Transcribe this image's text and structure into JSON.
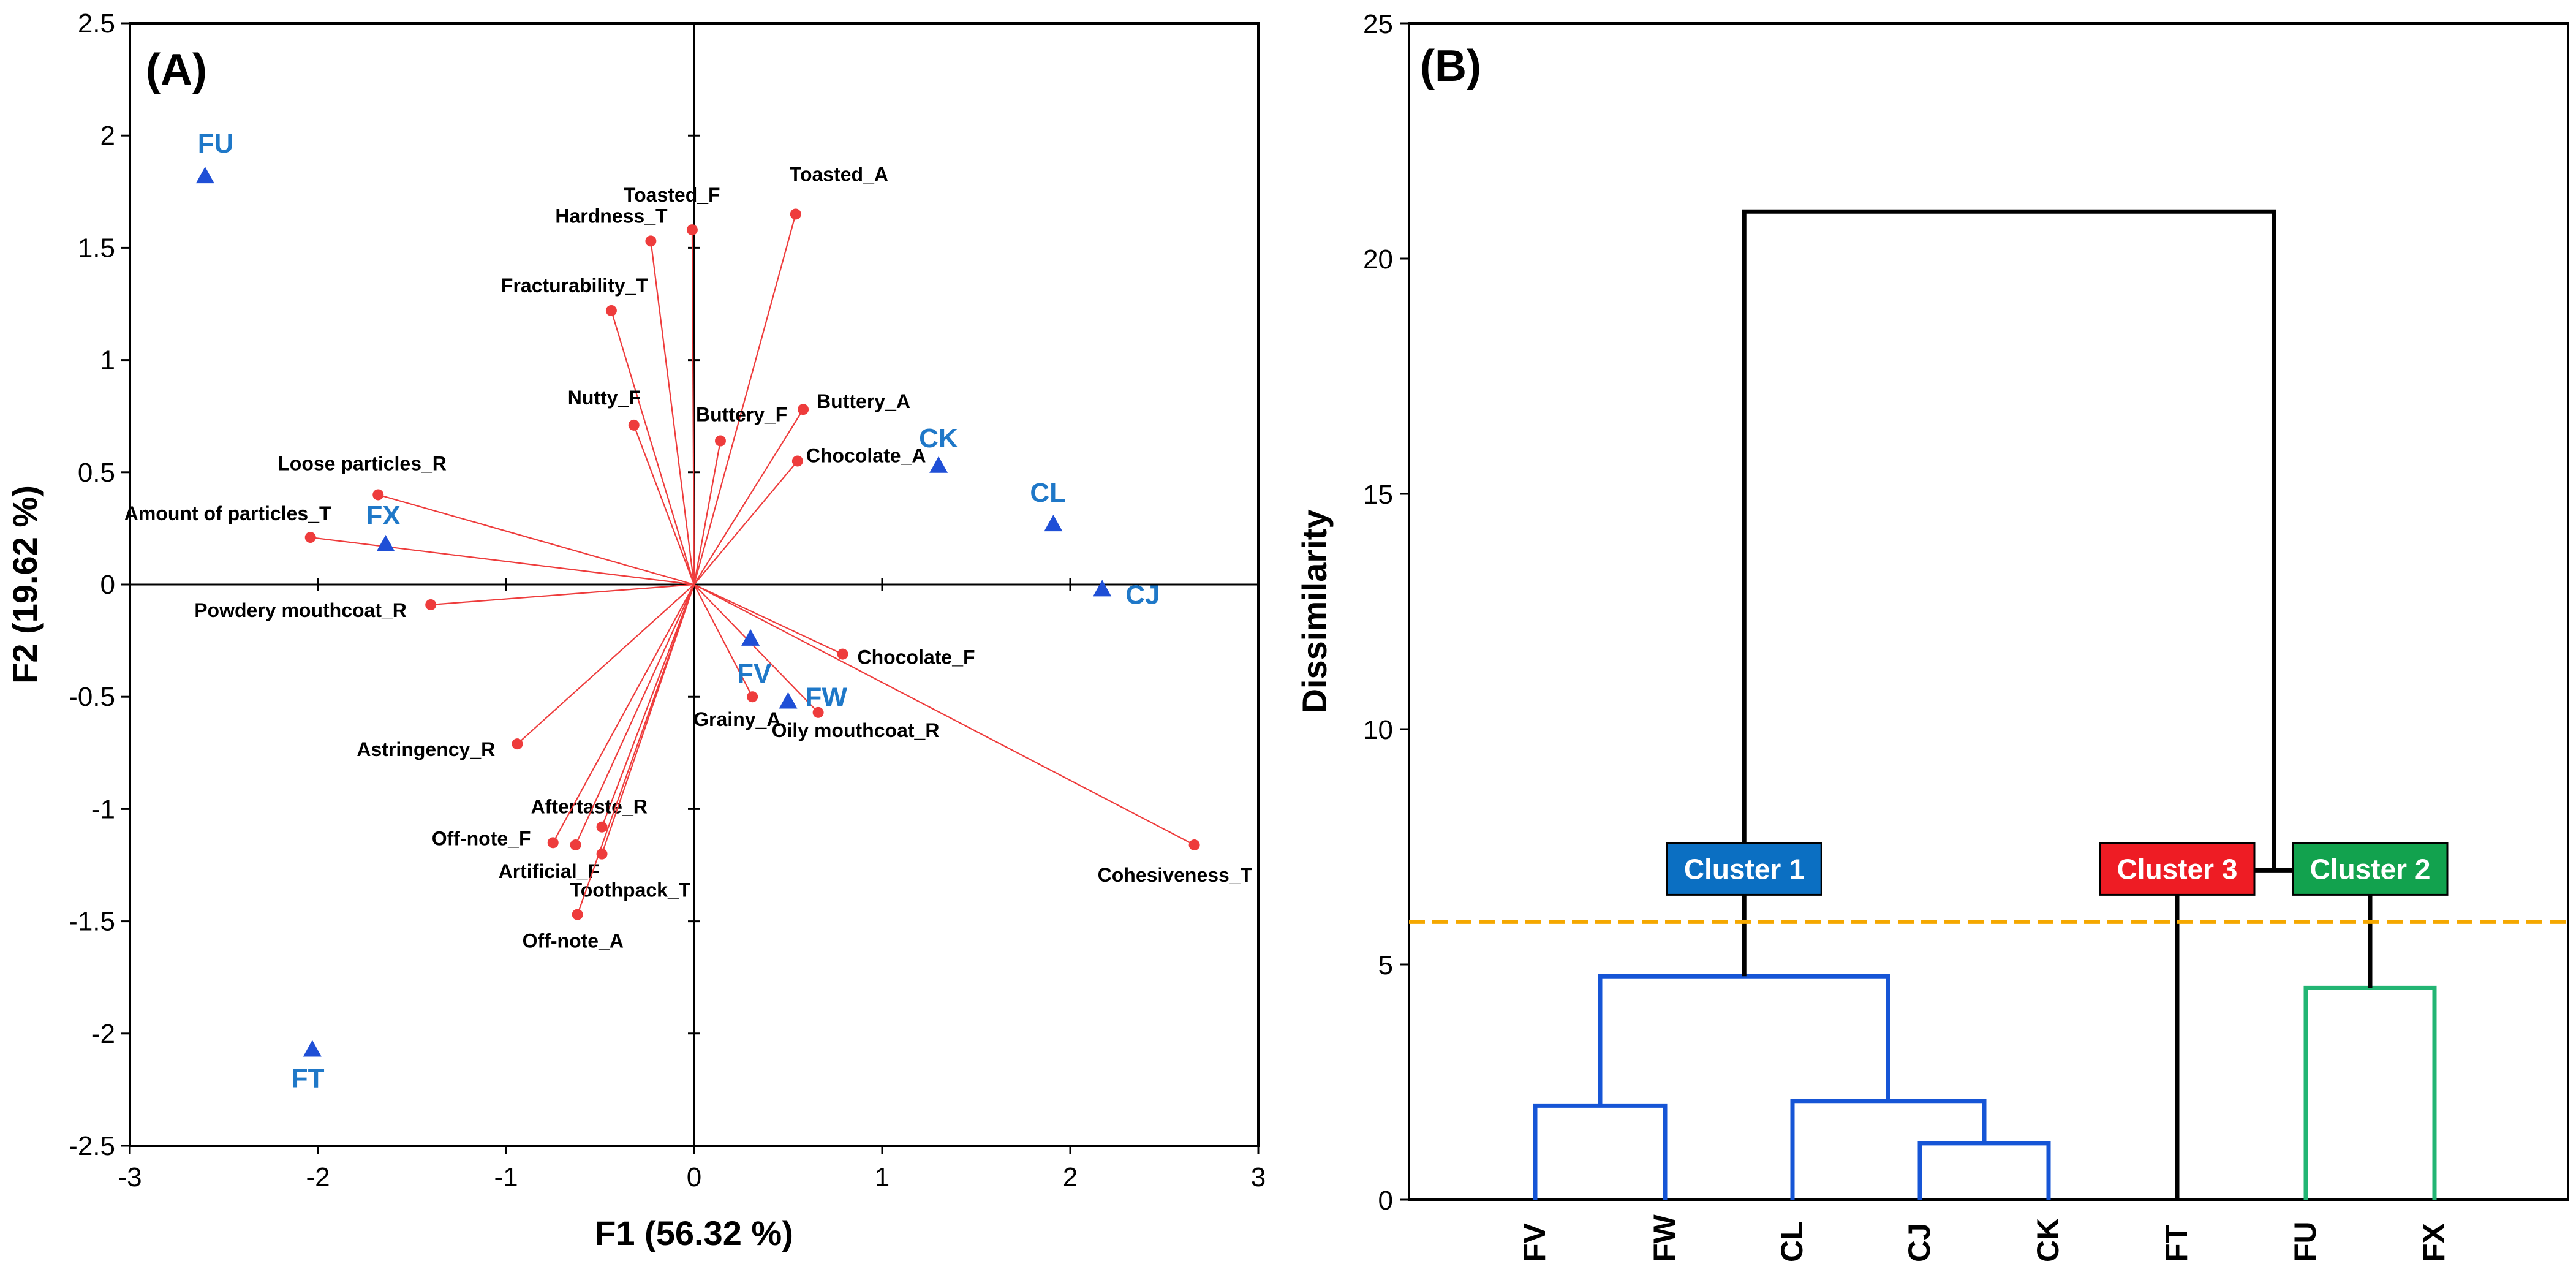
{
  "colors": {
    "vector": "#ee3c3c",
    "observation": "#1f4fd6",
    "observation_label": "#1f78c8",
    "tree_black": "#000000",
    "cluster1": "#1655d6",
    "cluster2": "#22b573",
    "cluster1_box": "#0b6fc2",
    "cluster2_box": "#12a24e",
    "cluster3_box": "#ee1c24",
    "cutline": "#f5a800"
  },
  "chart_data": [
    {
      "type": "scatter",
      "panel": "(A)",
      "xlabel": "F1 (56.32 %)",
      "ylabel": "F2 (19.62 %)",
      "xlim": [
        -3,
        3
      ],
      "ylim": [
        -2.5,
        2.5
      ],
      "xticks": [
        "-3",
        "-2",
        "-1",
        "0",
        "1",
        "2",
        "3"
      ],
      "yticks": [
        "-2.5",
        "-2",
        "-1.5",
        "-1",
        "-0.5",
        "0",
        "0.5",
        "1",
        "1.5",
        "2",
        "2.5"
      ],
      "variables": [
        {
          "name": "Toasted_A",
          "x": 0.54,
          "y": 1.65
        },
        {
          "name": "Toasted_F",
          "x": -0.01,
          "y": 1.58
        },
        {
          "name": "Hardness_T",
          "x": -0.23,
          "y": 1.53
        },
        {
          "name": "Fracturability_T",
          "x": -0.44,
          "y": 1.22
        },
        {
          "name": "Nutty_F",
          "x": -0.32,
          "y": 0.71
        },
        {
          "name": "Buttery_F",
          "x": 0.14,
          "y": 0.64
        },
        {
          "name": "Buttery_A",
          "x": 0.58,
          "y": 0.78
        },
        {
          "name": "Chocolate_A",
          "x": 0.55,
          "y": 0.55
        },
        {
          "name": "Loose particles_R",
          "x": -1.68,
          "y": 0.4
        },
        {
          "name": "Amount of particles_T",
          "x": -2.04,
          "y": 0.21
        },
        {
          "name": "Powdery mouthcoat_R",
          "x": -1.4,
          "y": -0.09
        },
        {
          "name": "Chocolate_F",
          "x": 0.79,
          "y": -0.31
        },
        {
          "name": "Grainy_A",
          "x": 0.31,
          "y": -0.5
        },
        {
          "name": "Oily mouthcoat_R",
          "x": 0.66,
          "y": -0.57
        },
        {
          "name": "Astringency_R",
          "x": -0.94,
          "y": -0.71
        },
        {
          "name": "Aftertaste_R",
          "x": -0.49,
          "y": -1.08
        },
        {
          "name": "Off-note_F",
          "x": -0.75,
          "y": -1.15
        },
        {
          "name": "Artificial_F",
          "x": -0.63,
          "y": -1.16
        },
        {
          "name": "Toothpack_T",
          "x": -0.49,
          "y": -1.2
        },
        {
          "name": "Off-note_A",
          "x": -0.62,
          "y": -1.47
        },
        {
          "name": "Cohesiveness_T",
          "x": 2.66,
          "y": -1.16
        }
      ],
      "observations": [
        {
          "name": "FU",
          "x": -2.6,
          "y": 1.82
        },
        {
          "name": "FX",
          "x": -1.64,
          "y": 0.18
        },
        {
          "name": "FT",
          "x": -2.03,
          "y": -2.07
        },
        {
          "name": "CK",
          "x": 1.3,
          "y": 0.53
        },
        {
          "name": "CL",
          "x": 1.91,
          "y": 0.27
        },
        {
          "name": "CJ",
          "x": 2.17,
          "y": -0.02
        },
        {
          "name": "FV",
          "x": 0.3,
          "y": -0.24
        },
        {
          "name": "FW",
          "x": 0.5,
          "y": -0.52
        }
      ]
    },
    {
      "type": "dendrogram",
      "panel": "(B)",
      "ylabel": "Dissimilarity",
      "ylim": [
        0,
        25
      ],
      "yticks": [
        "0",
        "5",
        "10",
        "15",
        "20",
        "25"
      ],
      "leaves": [
        "FV",
        "FW",
        "CL",
        "CJ",
        "CK",
        "FT",
        "FU",
        "FX"
      ],
      "cut_height": 5.9,
      "merges": [
        {
          "a": 3,
          "b": 4,
          "height": 1.2,
          "group": "cluster1"
        },
        {
          "a": 0,
          "b": 1,
          "height": 2.0,
          "group": "cluster1"
        },
        {
          "a": 2,
          "b": "m0",
          "height": 2.1,
          "group": "cluster1"
        },
        {
          "a": "m1",
          "b": "m2",
          "height": 4.75,
          "group": "cluster1"
        },
        {
          "a": 6,
          "b": 7,
          "height": 4.5,
          "group": "cluster2"
        },
        {
          "a": 5,
          "b": "m4",
          "height": 7.0,
          "group": "root"
        },
        {
          "a": "m3",
          "b": "m5",
          "height": 21.0,
          "group": "root"
        }
      ],
      "clusters": [
        {
          "label": "Cluster 1",
          "color_key": "cluster1_box",
          "over": "m3"
        },
        {
          "label": "Cluster 3",
          "color_key": "cluster3_box",
          "over": 5
        },
        {
          "label": "Cluster 2",
          "color_key": "cluster2_box",
          "over": "m4"
        }
      ]
    }
  ]
}
